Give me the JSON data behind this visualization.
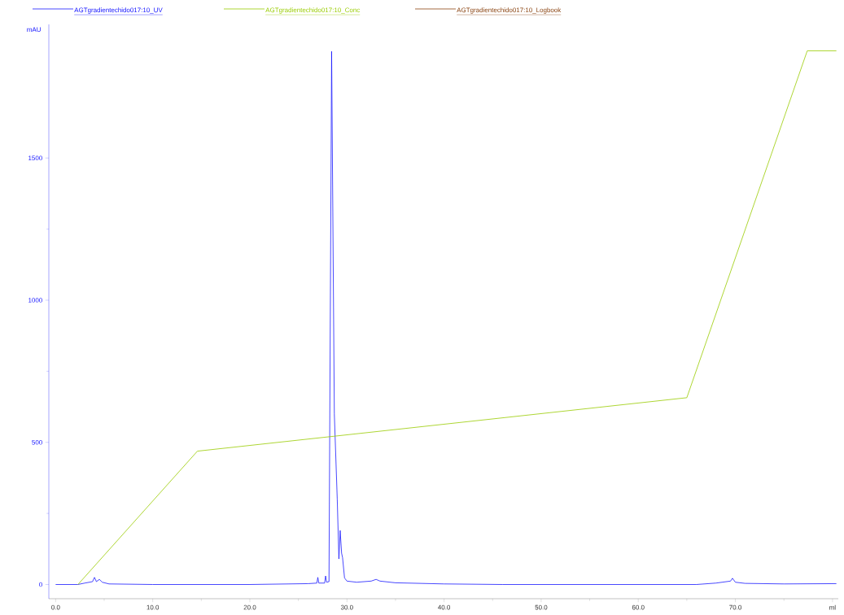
{
  "chart_data": {
    "type": "line",
    "ylabel": "mAU",
    "xlim": [
      -0.7,
      80.6
    ],
    "ylim": [
      -50,
      1970
    ],
    "xticks": [
      {
        "value": 0,
        "label": "0.0"
      },
      {
        "value": 10,
        "label": "10.0"
      },
      {
        "value": 20,
        "label": "20.0"
      },
      {
        "value": 30,
        "label": "30.0"
      },
      {
        "value": 40,
        "label": "40.0"
      },
      {
        "value": 50,
        "label": "50.0"
      },
      {
        "value": 60,
        "label": "60.0"
      },
      {
        "value": 70,
        "label": "70.0"
      },
      {
        "value": 80,
        "label": "ml"
      }
    ],
    "yticks": [
      0,
      500,
      1000,
      1500
    ],
    "legend": "top",
    "grid": false,
    "marker": "none",
    "line_style": "solid",
    "series": [
      {
        "name": "AGTgradientechido017:10_UV",
        "color": "#1a1aff",
        "x": [
          0,
          2.3,
          3.0,
          3.8,
          4.0,
          4.2,
          4.5,
          4.8,
          5.5,
          10,
          20,
          26.0,
          26.9,
          27.0,
          27.1,
          27.7,
          27.8,
          27.9,
          28.15,
          28.42,
          28.7,
          29.0,
          29.17,
          29.3,
          29.45,
          29.55,
          29.75,
          30.0,
          31,
          32.5,
          33.0,
          33.4,
          35,
          40,
          46,
          50,
          60,
          66,
          68,
          69.5,
          69.7,
          70.0,
          71,
          75,
          80.4
        ],
        "values": [
          0,
          0,
          5,
          10,
          25,
          10,
          18,
          8,
          2,
          0,
          0,
          3,
          5,
          25,
          5,
          5,
          30,
          8,
          10,
          1875,
          600,
          300,
          90,
          190,
          110,
          94,
          23,
          12,
          8,
          12,
          18,
          12,
          6,
          2,
          0,
          0,
          0,
          0,
          5,
          12,
          22,
          8,
          4,
          2,
          3
        ]
      },
      {
        "name": "AGTgradientechido017:10_Conc",
        "color": "#99cc00",
        "x": [
          2.3,
          14.6,
          65.0,
          77.4,
          80.4
        ],
        "values": [
          0,
          469,
          657,
          1877,
          1877
        ]
      },
      {
        "name": "AGTgradientechido017:10_Logbook",
        "color": "#8b4513"
      }
    ]
  }
}
